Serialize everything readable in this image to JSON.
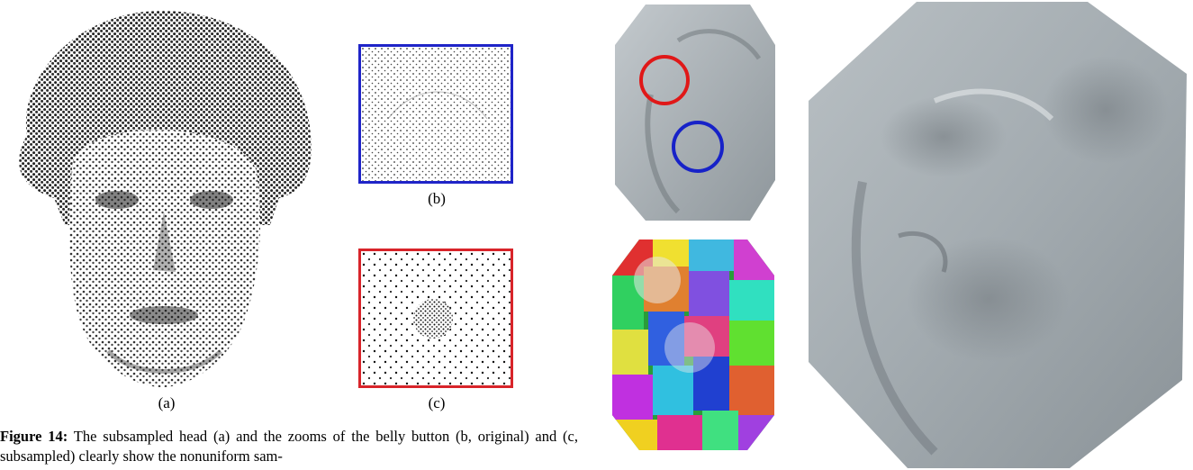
{
  "figure": {
    "panel_labels": {
      "a": "(a)",
      "b": "(b)",
      "c": "(c)"
    },
    "caption_bold": "Figure 14:",
    "caption_text": " The subsampled head (a) and the zooms of the belly button (b, original) and (c, subsampled) clearly show the nonuniform sam-"
  },
  "colors": {
    "zoom_b_border": "#1f24c8",
    "zoom_c_border": "#d8242a",
    "mesh_gray": "#a6adb2",
    "circle_red": "#e01818",
    "circle_blue": "#1722c8"
  },
  "icons": {
    "head_point_cloud": "head-point-cloud-icon",
    "zoom_original": "zoom-original-points-icon",
    "zoom_subsampled": "zoom-subsampled-points-icon",
    "bust_small": "bust-mesh-icon",
    "segmentation": "segmentation-patches-icon",
    "bust_large": "bust-mesh-large-icon"
  }
}
